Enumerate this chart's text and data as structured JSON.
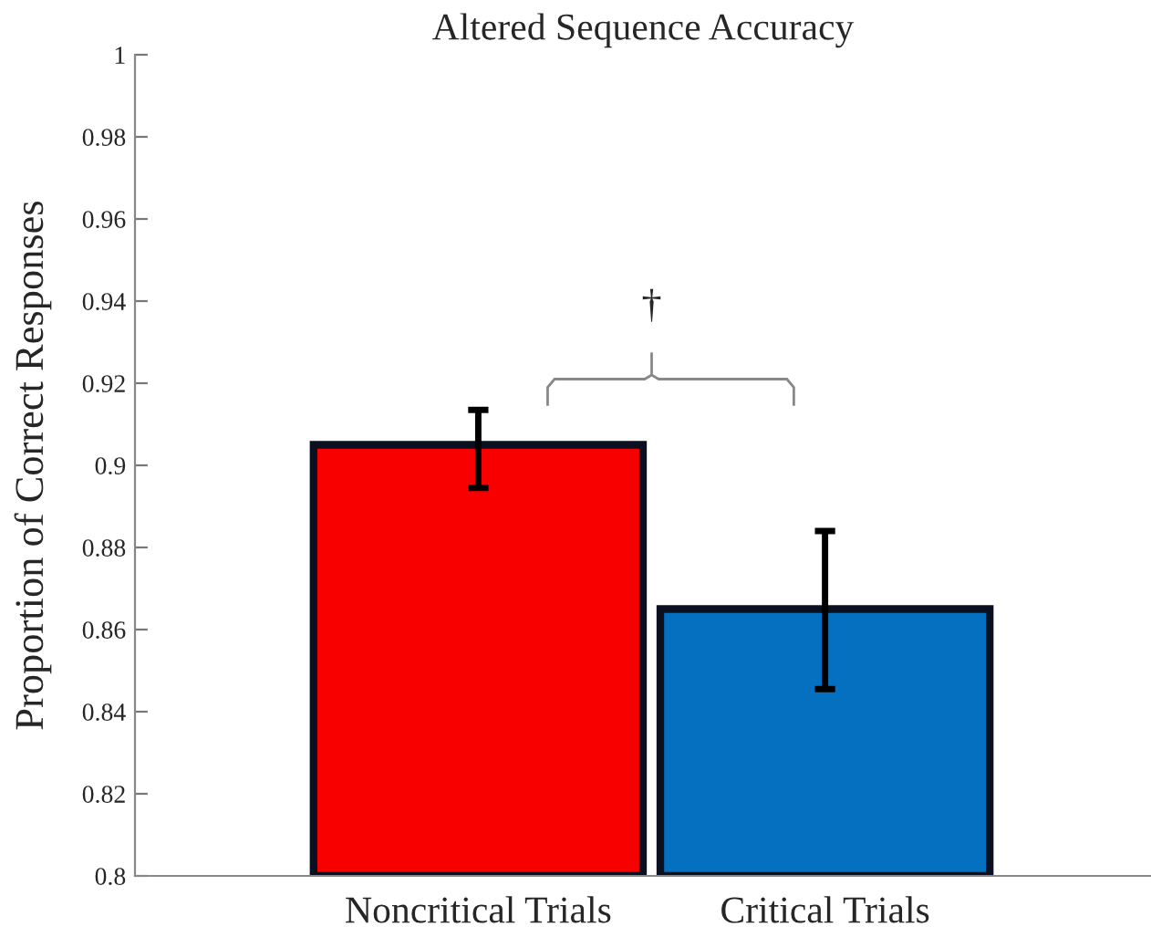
{
  "chart_data": {
    "type": "bar",
    "title": "Altered Sequence Accuracy",
    "ylabel": "Proportion of Correct Responses",
    "categories": [
      "Noncritical Trials",
      "Critical Trials"
    ],
    "values": [
      0.905,
      0.865
    ],
    "colors": [
      "#f90000",
      "#0570c0"
    ],
    "errors": [
      [
        0.8945,
        0.9135
      ],
      [
        0.8455,
        0.884
      ]
    ],
    "ylim": [
      0.8,
      1
    ],
    "yticks": [
      0.8,
      0.82,
      0.84,
      0.86,
      0.88,
      0.9,
      0.92,
      0.94,
      0.96,
      0.98,
      1
    ],
    "annotations": [
      "†"
    ],
    "grid": false,
    "legend": false
  }
}
